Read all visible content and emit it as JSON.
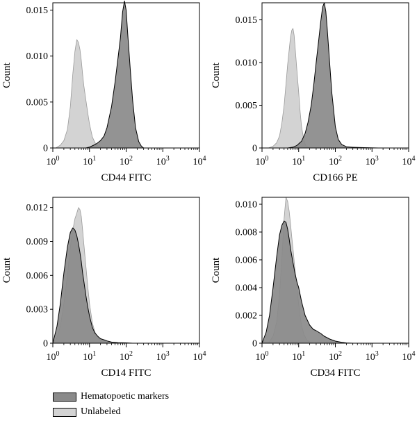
{
  "colors": {
    "marker": "#8a8a8a",
    "unlabeled": "#d3d3d3",
    "axis": "#000000"
  },
  "legend": {
    "items": [
      {
        "label": "Hematopoetic markers",
        "color": "#8a8a8a"
      },
      {
        "label": "Unlabeled",
        "color": "#d3d3d3"
      }
    ],
    "placement": "bottom-left"
  },
  "chart_data": [
    {
      "type": "area",
      "xlabel": "CD44 FITC",
      "ylabel": "Count",
      "xscale": "log",
      "xlim": [
        1,
        10000
      ],
      "ylim": [
        0,
        0.0158
      ],
      "xticks": [
        "10^0",
        "10^1",
        "10^2",
        "10^3",
        "10^4"
      ],
      "yticks": [
        "0",
        "0.005",
        "0.010",
        "0.015"
      ],
      "ytick_values": [
        0,
        0.005,
        0.01,
        0.015
      ],
      "series": [
        {
          "name": "Unlabeled",
          "color": "#d3d3d3",
          "x": [
            1.2,
            1.6,
            2.0,
            2.5,
            3.0,
            3.5,
            4.0,
            4.5,
            5.0,
            5.5,
            6.0,
            6.5,
            7.0,
            8.0,
            9.0,
            10,
            12,
            14,
            17,
            20,
            25,
            30
          ],
          "y": [
            0,
            0.0003,
            0.0008,
            0.002,
            0.0045,
            0.008,
            0.0105,
            0.0118,
            0.0115,
            0.0107,
            0.0095,
            0.008,
            0.0068,
            0.0052,
            0.0038,
            0.0026,
            0.0012,
            0.0006,
            0.0002,
            0.0001,
            0,
            0
          ]
        },
        {
          "name": "Hematopoetic markers",
          "color": "#8a8a8a",
          "x": [
            8,
            10,
            13,
            16,
            20,
            25,
            30,
            40,
            50,
            60,
            70,
            80,
            90,
            100,
            110,
            130,
            150,
            180,
            220,
            260,
            300
          ],
          "y": [
            0,
            0.0001,
            0.0003,
            0.0005,
            0.0008,
            0.0013,
            0.0022,
            0.0045,
            0.0072,
            0.0098,
            0.012,
            0.0148,
            0.016,
            0.015,
            0.0125,
            0.0085,
            0.0052,
            0.0022,
            0.0007,
            0.0002,
            0
          ]
        }
      ]
    },
    {
      "type": "area",
      "xlabel": "CD166 PE",
      "ylabel": "Count",
      "xscale": "log",
      "xlim": [
        1,
        10000
      ],
      "ylim": [
        0,
        0.017
      ],
      "xticks": [
        "10^0",
        "10^1",
        "10^2",
        "10^3",
        "10^4"
      ],
      "yticks": [
        "0",
        "0.005",
        "0.010",
        "0.015"
      ],
      "ytick_values": [
        0,
        0.005,
        0.01,
        0.015
      ],
      "series": [
        {
          "name": "Unlabeled",
          "color": "#d3d3d3",
          "x": [
            1.5,
            2.0,
            2.5,
            3.0,
            3.5,
            4.0,
            4.5,
            5.0,
            5.5,
            6.0,
            6.5,
            7.0,
            7.5,
            8.0,
            9.0,
            10,
            11,
            12,
            14,
            16,
            20
          ],
          "y": [
            0,
            0.0002,
            0.0006,
            0.0014,
            0.003,
            0.005,
            0.0075,
            0.0098,
            0.0115,
            0.013,
            0.0138,
            0.014,
            0.0132,
            0.0118,
            0.009,
            0.0065,
            0.0042,
            0.0025,
            0.0008,
            0.0002,
            0
          ]
        },
        {
          "name": "Hematopoetic markers",
          "color": "#8a8a8a",
          "x": [
            5,
            7,
            9,
            12,
            15,
            18,
            22,
            26,
            30,
            35,
            40,
            45,
            50,
            55,
            60,
            70,
            80,
            100,
            120,
            150,
            200,
            300,
            600,
            1500
          ],
          "y": [
            0,
            0.0001,
            0.0003,
            0.0008,
            0.0017,
            0.003,
            0.005,
            0.0075,
            0.01,
            0.0125,
            0.0148,
            0.0165,
            0.017,
            0.016,
            0.014,
            0.01,
            0.0065,
            0.0025,
            0.001,
            0.0004,
            0.00015,
            8e-05,
            4e-05,
            0
          ]
        }
      ]
    },
    {
      "type": "area",
      "xlabel": "CD14 FITC",
      "ylabel": "Count",
      "xscale": "log",
      "xlim": [
        1,
        10000
      ],
      "ylim": [
        0,
        0.0129
      ],
      "xticks": [
        "10^0",
        "10^1",
        "10^2",
        "10^3",
        "10^4"
      ],
      "yticks": [
        "0",
        "0.003",
        "0.006",
        "0.009",
        "0.012"
      ],
      "ytick_values": [
        0,
        0.003,
        0.006,
        0.009,
        0.012
      ],
      "series": [
        {
          "name": "Unlabeled",
          "color": "#d3d3d3",
          "x": [
            1,
            1.3,
            1.6,
            2.0,
            2.5,
            3.0,
            3.5,
            4.0,
            4.5,
            5.0,
            5.5,
            6.0,
            6.5,
            7.0,
            8.0,
            9.0,
            10,
            12,
            14,
            17,
            20,
            25,
            30,
            40,
            50
          ],
          "y": [
            0,
            0.0005,
            0.0015,
            0.0035,
            0.006,
            0.0085,
            0.01,
            0.011,
            0.0115,
            0.012,
            0.0118,
            0.0112,
            0.01,
            0.0088,
            0.0068,
            0.005,
            0.0035,
            0.0018,
            0.001,
            0.0005,
            0.0003,
            0.0002,
            0.0001,
            5e-05,
            0
          ]
        },
        {
          "name": "Hematopoetic markers",
          "color": "#8a8a8a",
          "x": [
            1,
            1.3,
            1.6,
            2.0,
            2.5,
            3.0,
            3.5,
            4.0,
            4.5,
            5.0,
            5.5,
            6.0,
            6.5,
            7.0,
            8.0,
            9.0,
            10,
            12,
            14,
            17,
            20,
            25,
            30,
            40,
            60,
            100,
            150
          ],
          "y": [
            0,
            0.0015,
            0.0035,
            0.0062,
            0.0085,
            0.0098,
            0.0102,
            0.01,
            0.0095,
            0.0088,
            0.008,
            0.0072,
            0.0062,
            0.0055,
            0.0042,
            0.0032,
            0.0024,
            0.0014,
            0.0009,
            0.0006,
            0.0004,
            0.0003,
            0.0002,
            0.0001,
            5e-05,
            3e-05,
            0
          ]
        }
      ]
    },
    {
      "type": "area",
      "xlabel": "CD34 FITC",
      "ylabel": "Count",
      "xscale": "log",
      "xlim": [
        1,
        10000
      ],
      "ylim": [
        0,
        0.0105
      ],
      "xticks": [
        "10^0",
        "10^1",
        "10^2",
        "10^3",
        "10^4"
      ],
      "yticks": [
        "0",
        "0.002",
        "0.004",
        "0.006",
        "0.008",
        "0.010"
      ],
      "ytick_values": [
        0,
        0.002,
        0.004,
        0.006,
        0.008,
        0.01
      ],
      "series": [
        {
          "name": "Unlabeled",
          "color": "#d3d3d3",
          "x": [
            1.5,
            2.0,
            2.5,
            3.0,
            3.5,
            4.0,
            4.5,
            5.0,
            5.5,
            6.0,
            6.5,
            7.0,
            8.0,
            9.0,
            10,
            11,
            12,
            14,
            17,
            20,
            25
          ],
          "y": [
            0,
            0.0005,
            0.0015,
            0.0035,
            0.0062,
            0.009,
            0.0105,
            0.0102,
            0.0095,
            0.0086,
            0.0076,
            0.0068,
            0.0052,
            0.004,
            0.0028,
            0.0019,
            0.0013,
            0.0006,
            0.0002,
            0.0001,
            0
          ]
        },
        {
          "name": "Hematopoetic markers",
          "color": "#8a8a8a",
          "x": [
            1,
            1.3,
            1.6,
            2.0,
            2.5,
            3.0,
            3.5,
            4.0,
            4.5,
            5.0,
            5.5,
            6.0,
            7.0,
            8.0,
            9.0,
            10,
            12,
            15,
            20,
            25,
            30,
            40,
            50,
            70,
            100,
            150,
            200,
            300
          ],
          "y": [
            0,
            0.0008,
            0.002,
            0.004,
            0.0062,
            0.0078,
            0.0085,
            0.0088,
            0.0087,
            0.0082,
            0.0075,
            0.0068,
            0.0058,
            0.005,
            0.0044,
            0.004,
            0.003,
            0.002,
            0.0013,
            0.001,
            0.0009,
            0.0007,
            0.0005,
            0.0003,
            0.00015,
            6e-05,
            2e-05,
            0
          ]
        }
      ]
    }
  ]
}
